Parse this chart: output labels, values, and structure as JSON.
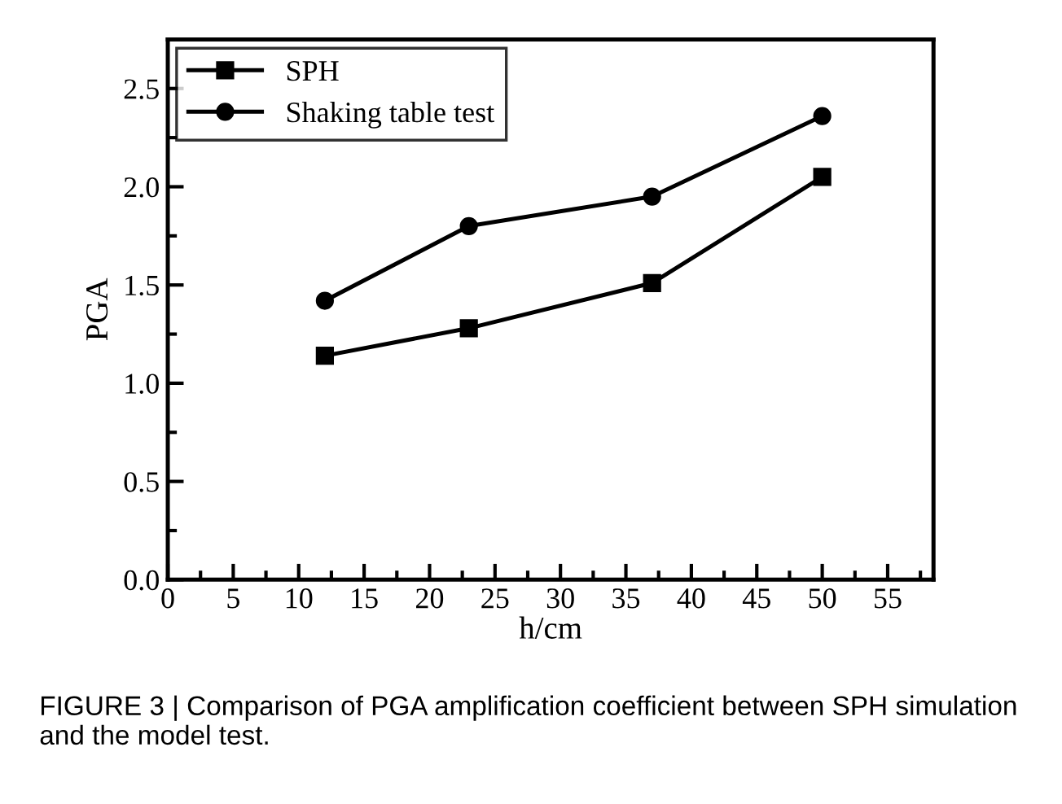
{
  "chart_data": {
    "type": "line",
    "xlabel": "h/cm",
    "ylabel": "PGA",
    "xlim": [
      0,
      58.5
    ],
    "xticks": [
      0,
      5,
      10,
      15,
      20,
      25,
      30,
      35,
      40,
      45,
      50,
      55
    ],
    "ylim": [
      0,
      2.75
    ],
    "yticks": [
      {
        "value": 0,
        "label": "0.0"
      },
      0.5,
      {
        "value": 1,
        "label": "1.0"
      },
      1.5,
      {
        "value": 2,
        "label": "2.0"
      },
      2.5
    ],
    "x": [
      12,
      23,
      37,
      50
    ],
    "series": [
      {
        "name": "SPH",
        "color": "#000000",
        "marker": "square",
        "values": [
          1.14,
          1.28,
          1.51,
          2.05
        ]
      },
      {
        "name": "Shaking table test",
        "color": "#000000",
        "marker": "circle",
        "values": [
          1.42,
          1.8,
          1.95,
          2.36
        ]
      }
    ],
    "legend": "top left",
    "grid": false,
    "annotations": [
      "FIGURE 3 | Comparison of PGA amplification coefficient between SPH simulation and the model test."
    ]
  }
}
